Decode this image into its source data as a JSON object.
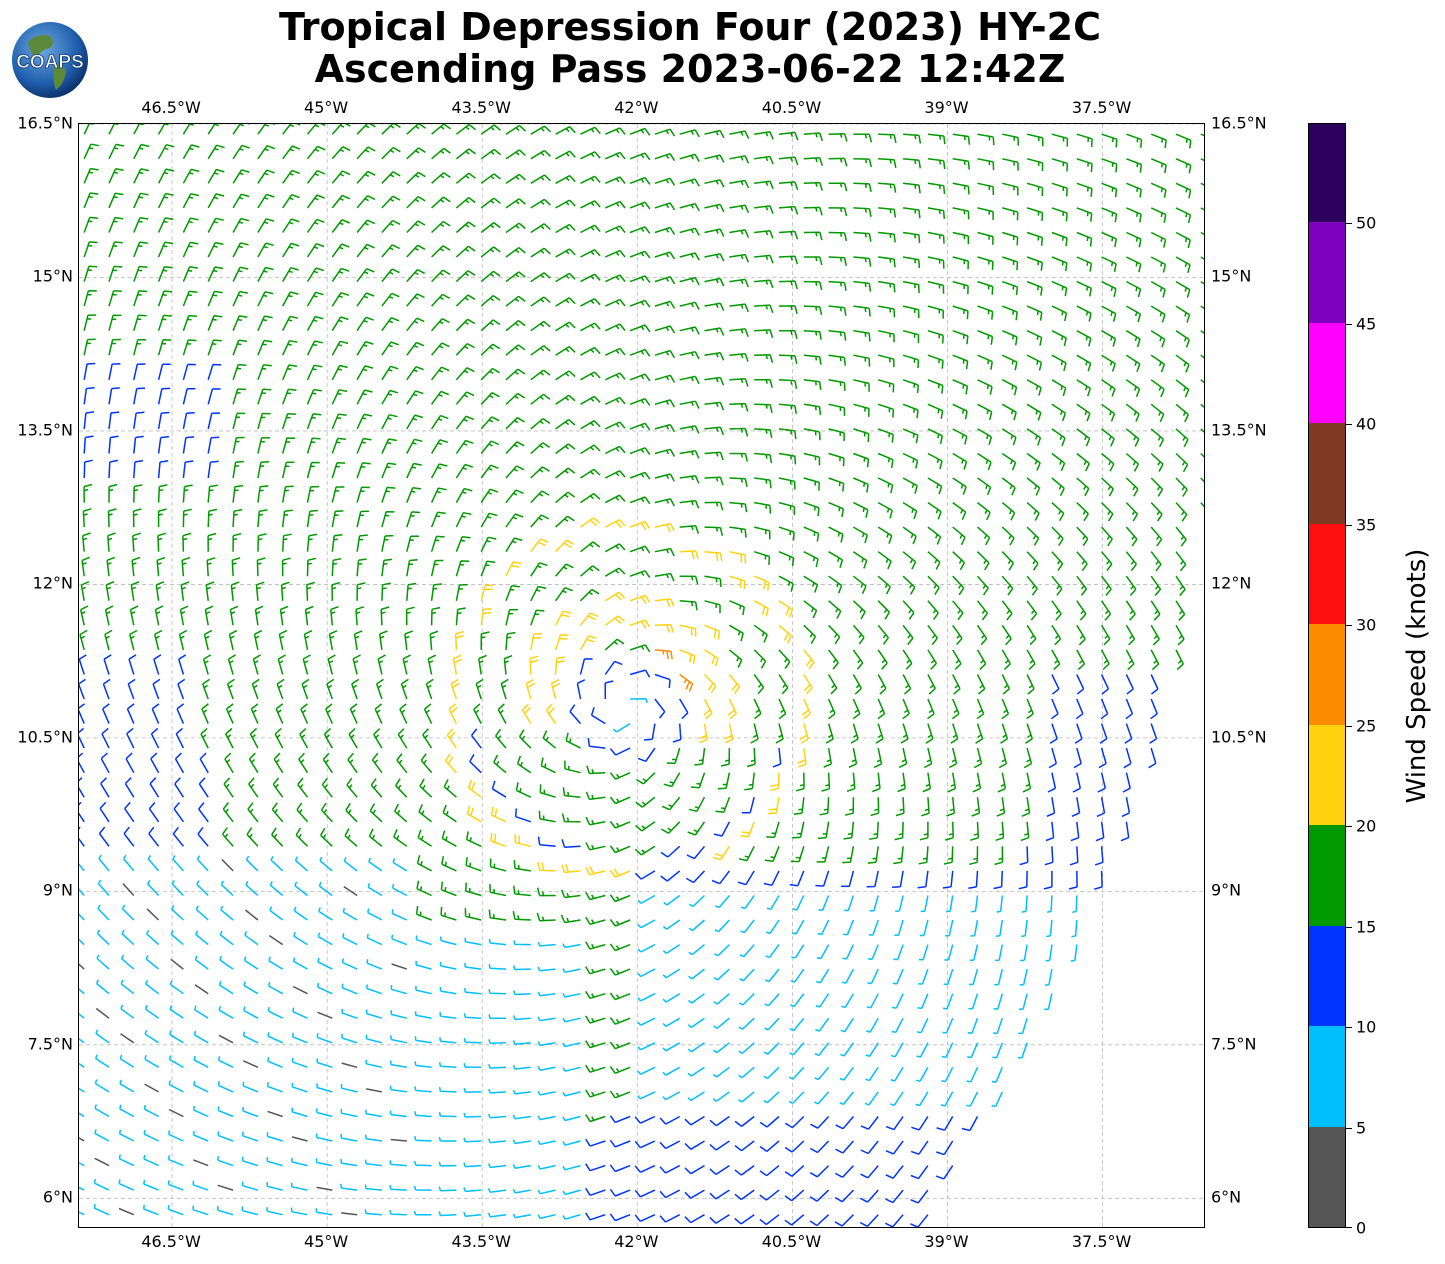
{
  "title_line1": "Tropical Depression Four (2023) HY-2C",
  "title_line2": "Ascending Pass 2023-06-22 12:42Z",
  "logo_text": "COAPS",
  "map": {
    "lon_range": [
      -47.4,
      -36.5
    ],
    "lat_range": [
      5.7,
      16.5
    ],
    "lon_ticks": [
      {
        "value": -46.5,
        "label": "46.5°W"
      },
      {
        "value": -45.0,
        "label": "45°W"
      },
      {
        "value": -43.5,
        "label": "43.5°W"
      },
      {
        "value": -42.0,
        "label": "42°W"
      },
      {
        "value": -40.5,
        "label": "40.5°W"
      },
      {
        "value": -39.0,
        "label": "39°W"
      },
      {
        "value": -37.5,
        "label": "37.5°W"
      }
    ],
    "lat_ticks": [
      {
        "value": 16.5,
        "label": "16.5°N"
      },
      {
        "value": 15.0,
        "label": "15°N"
      },
      {
        "value": 13.5,
        "label": "13.5°N"
      },
      {
        "value": 12.0,
        "label": "12°N"
      },
      {
        "value": 10.5,
        "label": "10.5°N"
      },
      {
        "value": 9.0,
        "label": "9°N"
      },
      {
        "value": 7.5,
        "label": "7.5°N"
      },
      {
        "value": 6.0,
        "label": "6°N"
      }
    ],
    "grid": true,
    "storm_center": {
      "lon": -42.1,
      "lat": 10.8
    },
    "swath_east_edge": [
      {
        "lat": 16.5,
        "lon": -36.5
      },
      {
        "lat": 13.0,
        "lon": -36.5
      },
      {
        "lat": 10.5,
        "lon": -36.9
      },
      {
        "lat": 8.0,
        "lon": -37.9
      },
      {
        "lat": 5.7,
        "lon": -39.2
      }
    ]
  },
  "colorbar": {
    "title": "Wind Speed (knots)",
    "min": 0,
    "max": 55,
    "bins": [
      {
        "from": 0,
        "to": 5,
        "color": "#555555"
      },
      {
        "from": 5,
        "to": 10,
        "color": "#00bfff"
      },
      {
        "from": 10,
        "to": 15,
        "color": "#0033ff"
      },
      {
        "from": 15,
        "to": 20,
        "color": "#009900"
      },
      {
        "from": 20,
        "to": 25,
        "color": "#ffd20f"
      },
      {
        "from": 25,
        "to": 30,
        "color": "#ff8c00"
      },
      {
        "from": 30,
        "to": 35,
        "color": "#ff1010"
      },
      {
        "from": 35,
        "to": 40,
        "color": "#7f3a24"
      },
      {
        "from": 40,
        "to": 45,
        "color": "#ff00ff"
      },
      {
        "from": 45,
        "to": 50,
        "color": "#8000c0"
      },
      {
        "from": 50,
        "to": 55,
        "color": "#2d0060"
      }
    ],
    "ticks": [
      0,
      5,
      10,
      15,
      20,
      25,
      30,
      35,
      40,
      45,
      50
    ]
  }
}
